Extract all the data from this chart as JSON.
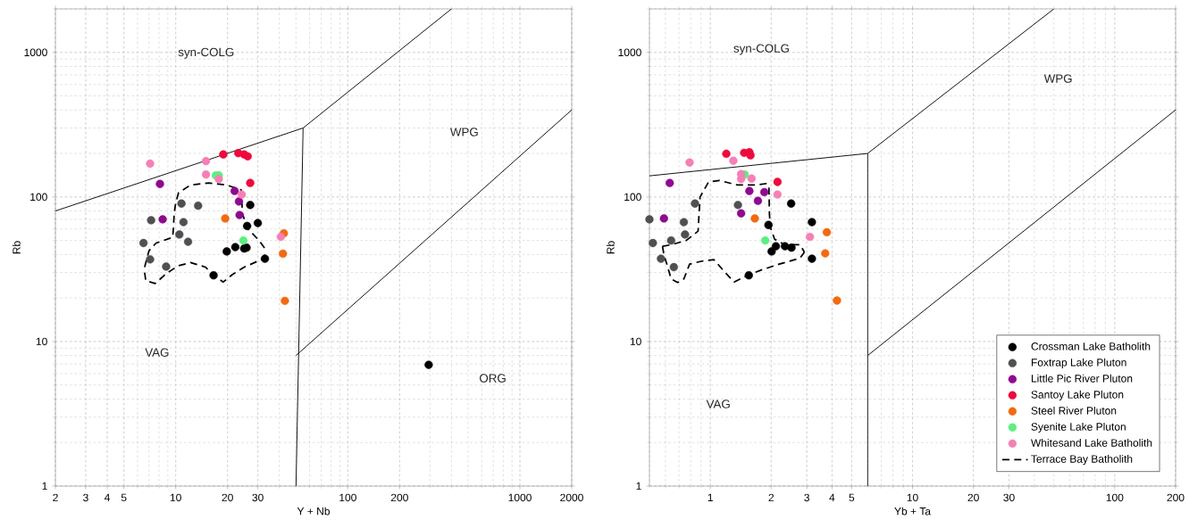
{
  "chart_data": [
    {
      "type": "scatter",
      "xlabel": "Y + Nb",
      "ylabel": "Rb",
      "log": "xy",
      "grid": true,
      "marker": "circle",
      "xlim": [
        2,
        2000
      ],
      "ylim": [
        1,
        2000
      ],
      "xticks": [
        2,
        3,
        4,
        5,
        10,
        20,
        30,
        100,
        200,
        1000,
        2000
      ],
      "yticks": [
        1,
        10,
        100,
        1000
      ],
      "annotations": [
        "syn-COLG",
        "WPG",
        "VAG",
        "ORG"
      ],
      "series": [
        {
          "color": "#000000",
          "x": [
            27.1,
            30.0,
            26.0,
            19.8,
            22.2,
            25.0,
            25.8,
            33.0,
            16.6,
            295
          ],
          "values": [
            88,
            66,
            63,
            42,
            45,
            44,
            44.6,
            37.4,
            28.7,
            6.9
          ]
        },
        {
          "color": "#505054",
          "x": [
            10.8,
            13.5,
            7.2,
            11.1,
            10.5,
            11.8,
            6.5,
            7.1,
            8.8
          ],
          "values": [
            90,
            87,
            69,
            67,
            55,
            49,
            48,
            37,
            33
          ]
        },
        {
          "color": "#8e0a8e",
          "x": [
            8.1,
            8.4,
            22.0,
            23.3,
            23.5
          ],
          "values": [
            123,
            70,
            110,
            93,
            75
          ]
        },
        {
          "color": "#ee0a3c",
          "x": [
            18.9,
            23.1,
            25.0,
            26.2,
            27.1
          ],
          "values": [
            197,
            201,
            197,
            191,
            125
          ]
        },
        {
          "color": "#f26a10",
          "x": [
            19.4,
            42.5,
            42,
            43.1
          ],
          "values": [
            71,
            56,
            40.5,
            19.1
          ]
        },
        {
          "color": "#5af07f",
          "x": [
            17.1,
            17.8,
            24.7
          ],
          "values": [
            141,
            141,
            50
          ]
        },
        {
          "color": "#f67fb5",
          "x": [
            7.1,
            15,
            15,
            17.8,
            24.2,
            40.8
          ],
          "values": [
            170,
            177,
            143,
            133,
            104,
            53
          ]
        },
        {
          "type": "line",
          "marker": "none",
          "line_style": "dashed",
          "color": "#000000",
          "x": [
            6.6,
            7.0,
            7.7,
            9.6,
            9.7,
            9.8,
            10.0,
            10.4,
            12.2,
            15.5,
            19.7,
            24.0,
            24.2,
            24.4,
            26.0,
            30.5,
            33.7
          ],
          "values": [
            32.7,
            42.5,
            48,
            52.6,
            61,
            77,
            91,
            107,
            121,
            125,
            121,
            112,
            97.5,
            77,
            61,
            50,
            42.5
          ]
        },
        {
          "type": "line",
          "marker": "none",
          "line_style": "dashed",
          "color": "#000000",
          "x": [
            6.6,
            6.7,
            7.6,
            8.9,
            10.4,
            12.2,
            14.9,
            16.8,
            18.9,
            21.3,
            25.0,
            31.7,
            33.0
          ],
          "values": [
            30,
            26.4,
            25.2,
            29.8,
            33.5,
            35.2,
            32.7,
            28.4,
            25.8,
            29,
            32.7,
            37,
            40
          ]
        },
        {
          "type": "line",
          "marker": "none",
          "color": "#000000",
          "x": [
            2,
            55,
            400
          ],
          "values": [
            80,
            300,
            2000
          ]
        },
        {
          "type": "line",
          "marker": "none",
          "color": "#000000",
          "x": [
            55,
            50
          ],
          "values": [
            300,
            1
          ]
        },
        {
          "type": "line",
          "marker": "none",
          "color": "#000000",
          "x": [
            50,
            2000
          ],
          "values": [
            8,
            400
          ]
        }
      ]
    },
    {
      "type": "scatter",
      "xlabel": "Yb + Ta",
      "ylabel": "Rb",
      "log": "xy",
      "grid": true,
      "marker": "circle",
      "legend": "bottom right",
      "xlim": [
        0.5,
        200
      ],
      "ylim": [
        1,
        2000
      ],
      "xticks": [
        1,
        2,
        3,
        4,
        5,
        10,
        20,
        30,
        100,
        200
      ],
      "yticks": [
        1,
        10,
        100,
        1000
      ],
      "annotations": [
        "syn-COLG",
        "WPG",
        "VAG"
      ],
      "series": [
        {
          "name": "Crossman Lake Batholith",
          "color": "#000000",
          "x": [
            2.51,
            3.18,
            1.94,
            2.01,
            2.11,
            2.34,
            2.52,
            3.18,
            1.55
          ],
          "values": [
            90,
            67,
            64,
            42,
            45.6,
            45.6,
            44.6,
            37.4,
            28.7
          ]
        },
        {
          "name": "Foxtrap Lake Pluton",
          "color": "#505054",
          "x": [
            0.84,
            1.37,
            0.5,
            0.74,
            0.75,
            0.52,
            0.64,
            0.57,
            0.66
          ],
          "values": [
            90,
            88,
            70,
            67,
            55,
            48,
            50,
            37.4,
            32.7
          ]
        },
        {
          "name": "Little Pic River Pluton",
          "color": "#8e0a8e",
          "x": [
            0.63,
            0.59,
            1.56,
            1.85,
            1.72,
            1.42
          ],
          "values": [
            125,
            71,
            110,
            108,
            94,
            77
          ]
        },
        {
          "name": "Santoy Lake Pluton",
          "color": "#ee0a3c",
          "x": [
            1.2,
            1.47,
            1.56,
            1.58,
            2.15
          ],
          "values": [
            199,
            202,
            204,
            194,
            127
          ]
        },
        {
          "name": "Steel River Pluton",
          "color": "#f26a10",
          "x": [
            1.66,
            3.77,
            3.7,
            4.23
          ],
          "values": [
            71,
            57,
            40.7,
            19.2
          ]
        },
        {
          "name": "Syenite Lake Pluton",
          "color": "#5af07f",
          "x": [
            1.48,
            1.87
          ],
          "values": [
            143,
            50
          ]
        },
        {
          "name": "Whitesand Lake Batholith",
          "color": "#f67fb5",
          "x": [
            0.79,
            1.3,
            1.42,
            1.42,
            1.6,
            2.15,
            3.11
          ],
          "values": [
            173,
            178,
            144,
            133,
            134,
            104,
            53
          ]
        },
        {
          "name": "Terrace Bay Batholith",
          "type": "line",
          "marker": "none",
          "line_style": "dashed",
          "color": "#000000",
          "x": [
            0.58,
            0.64,
            0.76,
            0.87,
            0.88,
            0.89,
            0.98,
            1.11,
            1.36,
            1.67,
            1.91,
            1.95,
            1.96,
            1.98,
            2.08,
            2.34,
            2.78,
            2.92
          ],
          "values": [
            45.6,
            46.7,
            50,
            58,
            77,
            100,
            127,
            130,
            121,
            121,
            124,
            115,
            77,
            62,
            51,
            46.7,
            46.7,
            41.5
          ]
        },
        {
          "type": "line",
          "marker": "none",
          "line_style": "dashed",
          "color": "#000000",
          "x": [
            0.58,
            0.59,
            0.61,
            0.64,
            0.69,
            0.74,
            0.79,
            0.91,
            1.04,
            1.19,
            1.31,
            1.51,
            1.78,
            2.19,
            2.78,
            2.92
          ],
          "values": [
            45.6,
            39.6,
            34.3,
            27.1,
            25.6,
            27.1,
            34.3,
            36,
            36.9,
            29.8,
            25.8,
            28.4,
            31.2,
            34.3,
            37.8,
            41.5
          ]
        },
        {
          "type": "line",
          "marker": "none",
          "color": "#000000",
          "x": [
            0.5,
            6,
            50
          ],
          "values": [
            140,
            200,
            2000
          ]
        },
        {
          "type": "line",
          "marker": "none",
          "color": "#000000",
          "x": [
            6,
            6
          ],
          "values": [
            200,
            1
          ]
        },
        {
          "type": "line",
          "marker": "none",
          "color": "#000000",
          "x": [
            6,
            200
          ],
          "values": [
            8,
            400
          ]
        }
      ]
    }
  ]
}
